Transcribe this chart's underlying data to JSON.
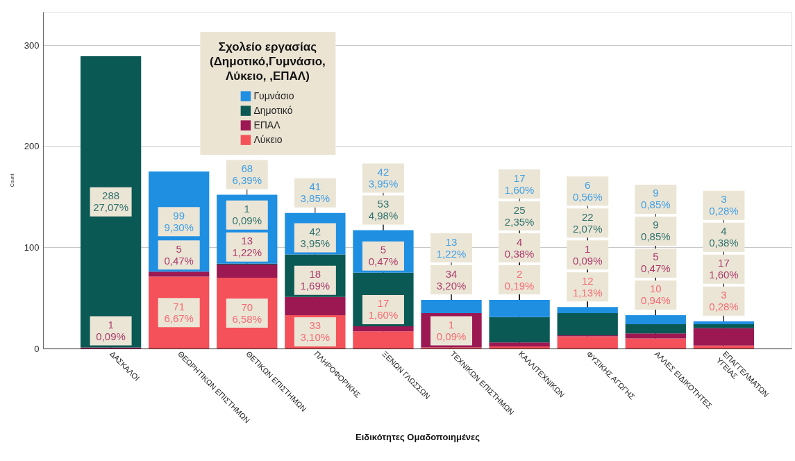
{
  "chart_data": {
    "type": "bar",
    "stacked": true,
    "xlabel": "Ειδικότητες Ομαδοποιημένες",
    "ylabel": "Count",
    "legend_title": "Σχολείο εργασίας (Δημοτικό,Γυμνάσιο, Λύκειο, ,ΕΠΑΛ)",
    "categories": [
      "ΔΑΣΚΑΛΟΙ",
      "ΘΕΩΡΗΤΙΚΩΝ ΕΠΙΣΤΗΜΩΝ",
      "ΘΕΤΙΚΩΝ ΕΠΙΣΤΗΜΩΝ",
      "ΠΛΗΡΟΦΟΡΙΚΗΣ",
      "ΞΕΝΩΝ ΓΛΩΣΣΩΝ",
      "ΤΕΧΝΙΚΩΝ ΕΠΙΣΤΗΜΩΝ",
      "ΚΑΛΛΙΤΕΧΝΙΚΩΝ",
      "ΦΥΣΙΚΗΣ ΑΓΩΓΗΣ",
      "ΑΛΛΕΣ ΕΙΔΙΚΟΤΗΤΕΣ",
      "ΕΠΑΓΓΕΛΜΑΤΩΝ ΥΓΕΙΑΣ"
    ],
    "series": [
      {
        "name": "Λύκειο",
        "color": "#f4515a",
        "values": [
          null,
          71,
          70,
          33,
          17,
          1,
          2,
          12,
          10,
          3
        ],
        "value_labels": [
          null,
          "71 6,67%",
          "70 6,58%",
          "33 3,10%",
          "17 1,60%",
          "1 0,09%",
          "2 0,19%",
          "12 1,13%",
          "10 0,94%",
          "3 0,28%"
        ]
      },
      {
        "name": "ΕΠΑΛ",
        "color": "#9c1852",
        "values": [
          1,
          5,
          13,
          18,
          5,
          34,
          4,
          1,
          5,
          17
        ],
        "value_labels": [
          "1 0,09%",
          "5 0,47%",
          "13 1,22%",
          "18 1,69%",
          "5 0,47%",
          "34 3,20%",
          "4 0,38%",
          "1 0,09%",
          "5 0,47%",
          "17 1,60%"
        ]
      },
      {
        "name": "Δημοτικό",
        "color": "#0b5955",
        "values": [
          288,
          null,
          1,
          42,
          53,
          null,
          25,
          22,
          9,
          4
        ],
        "value_labels": [
          "288 27,07%",
          null,
          "1 0,09%",
          "42 3,95%",
          "53 4,98%",
          null,
          "25 2,35%",
          "22 2,07%",
          "9 0,85%",
          "4 0,38%"
        ]
      },
      {
        "name": "Γυμνάσιο",
        "color": "#1f8fe2",
        "values": [
          null,
          99,
          68,
          41,
          42,
          13,
          17,
          6,
          9,
          3
        ],
        "value_labels": [
          null,
          "99 9,30%",
          "68 6,39%",
          "41 3,85%",
          "42 3,95%",
          "13 1,22%",
          "17 1,60%",
          "6 0,56%",
          "9 0,85%",
          "3 0,28%"
        ]
      }
    ],
    "ylim": [
      0,
      333
    ],
    "yticks": [
      0,
      100,
      200,
      300
    ],
    "grid": "y",
    "legend": "top left"
  }
}
